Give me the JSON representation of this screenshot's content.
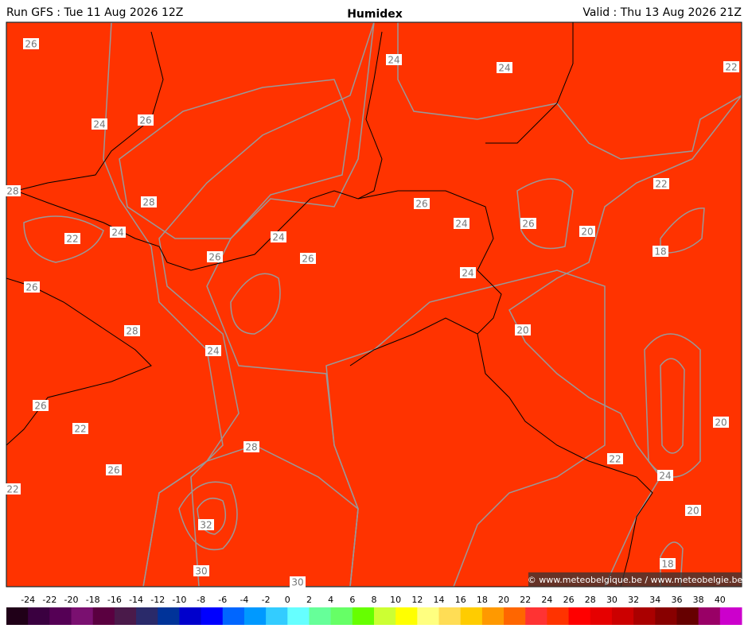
{
  "header": {
    "run": "Run GFS : Tue 11 Aug 2026 12Z",
    "title": "Humidex",
    "valid": "Valid : Thu 13 Aug 2026 21Z"
  },
  "map": {
    "contour_labels": [
      26,
      24,
      26,
      28,
      28,
      24,
      22,
      26,
      24,
      26,
      26,
      28,
      24,
      26,
      22,
      26,
      22,
      28,
      32,
      30,
      30,
      24,
      24,
      22,
      26,
      24,
      26,
      20,
      22,
      18,
      24,
      20,
      20,
      22,
      24,
      20,
      18
    ],
    "credit": "© www.meteobelgique.be / www.meteobelgie.be"
  },
  "colorbar": {
    "ticks": [
      -24,
      -22,
      -20,
      -18,
      -16,
      -14,
      -12,
      -10,
      -8,
      -6,
      -4,
      -2,
      0,
      2,
      4,
      6,
      8,
      10,
      12,
      14,
      16,
      18,
      20,
      22,
      24,
      26,
      28,
      30,
      32,
      34,
      36,
      38,
      40
    ],
    "colors": [
      "#200018",
      "#3a0040",
      "#550055",
      "#7a1070",
      "#5a0040",
      "#4a1a4a",
      "#2a2a6a",
      "#003399",
      "#0000cc",
      "#0000ff",
      "#0066ff",
      "#0099ff",
      "#33ccff",
      "#66ffff",
      "#66ff99",
      "#66ff66",
      "#66ff00",
      "#ccff33",
      "#ffff00",
      "#ffff80",
      "#ffdd55",
      "#ffcc00",
      "#ff9900",
      "#ff6600",
      "#ff3333",
      "#ff3300",
      "#ff0000",
      "#e60000",
      "#cc0000",
      "#aa0000",
      "#880000",
      "#660000",
      "#990066",
      "#cc00cc"
    ]
  }
}
